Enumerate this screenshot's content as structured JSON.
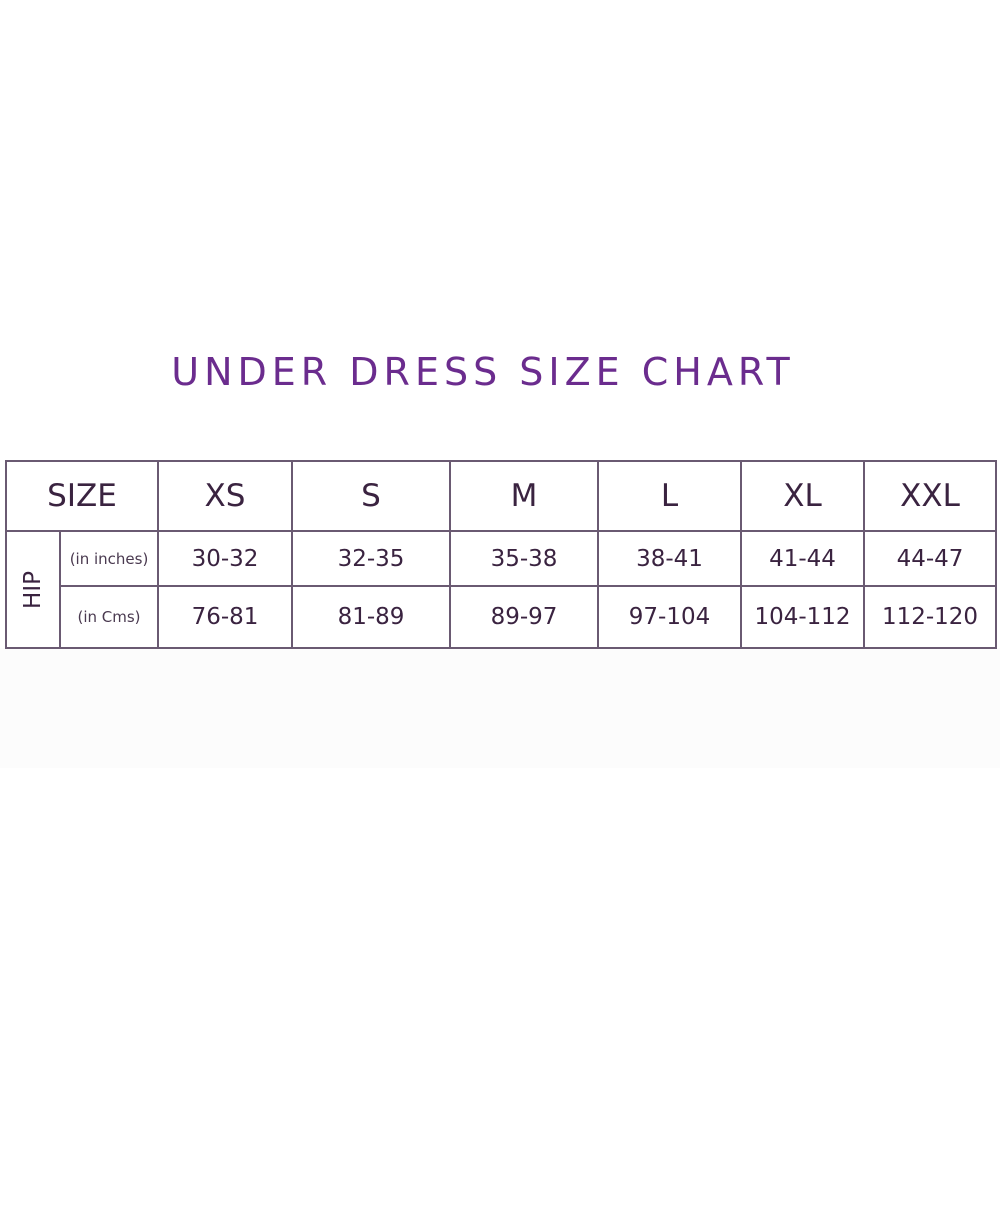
{
  "title": "UNDER DRESS SIZE CHART",
  "table": {
    "size_label": "SIZE",
    "sizes": [
      "XS",
      "S",
      "M",
      "L",
      "XL",
      "XXL"
    ],
    "measure_label": "HIP",
    "rows": [
      {
        "unit": "(in inches)",
        "values": [
          "30-32",
          "32-35",
          "35-38",
          "38-41",
          "41-44",
          "44-47"
        ]
      },
      {
        "unit": "(in Cms)",
        "values": [
          "76-81",
          "81-89",
          "89-97",
          "97-104",
          "104-112",
          "112-120"
        ]
      }
    ]
  },
  "colors": {
    "title": "#6b2c8e",
    "text": "#3a2340",
    "border": "#6a5a72"
  }
}
